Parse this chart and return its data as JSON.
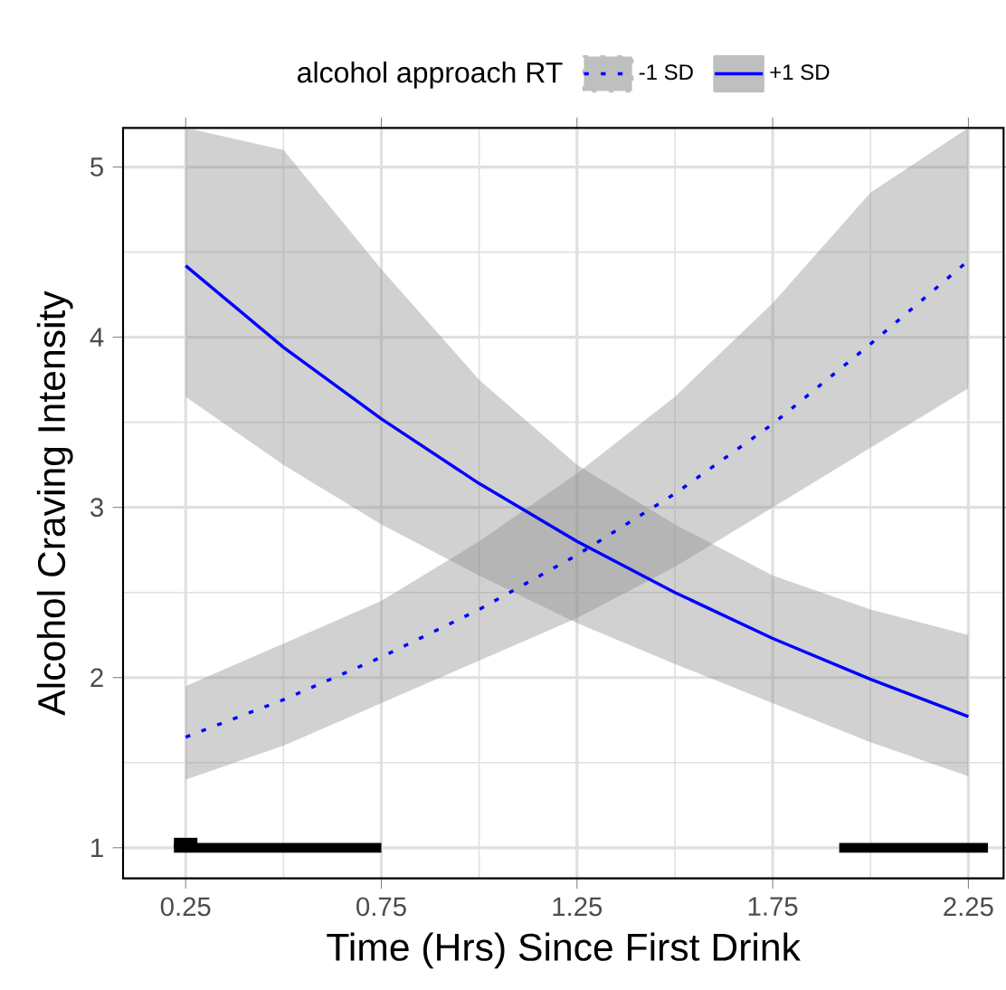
{
  "chart_data": {
    "type": "line",
    "xlabel": "Time (Hrs) Since First Drink",
    "ylabel": "Alcohol Craving Intensity",
    "legend_title": "alcohol approach RT",
    "legend": "top",
    "grid": true,
    "xlim": [
      0.09,
      2.34
    ],
    "ylim": [
      0.82,
      5.23
    ],
    "xticks": [
      0.25,
      0.75,
      1.25,
      1.75,
      2.25
    ],
    "yticks": [
      1,
      2,
      3,
      4,
      5
    ],
    "x": [
      0.25,
      0.5,
      0.75,
      1.0,
      1.25,
      1.5,
      1.75,
      2.0,
      2.25
    ],
    "series": [
      {
        "name": "-1 SD",
        "color": "#0000ff",
        "line_style": "dotted",
        "values": [
          1.65,
          1.87,
          2.12,
          2.4,
          2.72,
          3.08,
          3.49,
          3.96,
          4.45
        ],
        "lower": [
          1.4,
          1.6,
          1.85,
          2.1,
          2.35,
          2.65,
          3.0,
          3.35,
          3.7
        ],
        "upper": [
          1.95,
          2.2,
          2.45,
          2.8,
          3.2,
          3.65,
          4.2,
          4.85,
          5.23
        ]
      },
      {
        "name": "+1 SD",
        "color": "#0000ff",
        "line_style": "solid",
        "values": [
          4.42,
          3.94,
          3.52,
          3.14,
          2.8,
          2.5,
          2.23,
          1.99,
          1.77
        ],
        "lower": [
          3.65,
          3.25,
          2.9,
          2.6,
          2.32,
          2.08,
          1.85,
          1.62,
          1.42
        ],
        "upper": [
          5.23,
          5.1,
          4.4,
          3.75,
          3.25,
          2.9,
          2.6,
          2.4,
          2.25
        ]
      },
      {
        "color": "#000000",
        "line_style": "solid",
        "x": [
          0.22,
          0.75
        ],
        "values": [
          1,
          1
        ]
      },
      {
        "color": "#000000",
        "line_style": "solid",
        "x": [
          1.92,
          2.3
        ],
        "values": [
          1,
          1
        ]
      },
      {
        "color": "#000000",
        "line_style": "solid",
        "x": [
          0.22,
          0.28
        ],
        "values": [
          1.03,
          1.03
        ]
      }
    ]
  }
}
